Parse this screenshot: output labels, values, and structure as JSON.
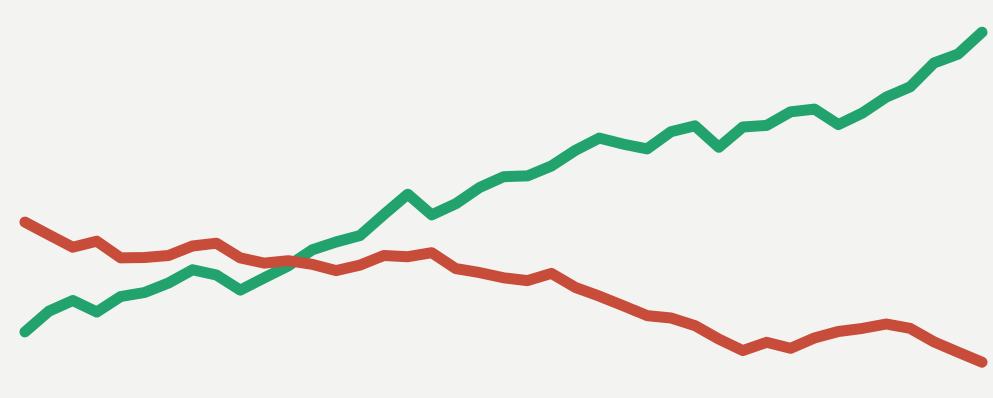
{
  "colors": {
    "background": "#f3f3f1",
    "green": "#22a36e",
    "red": "#c84c3a"
  },
  "chart_data": {
    "type": "line",
    "title": "",
    "xlabel": "",
    "ylabel": "",
    "grid": false,
    "legend": "none",
    "xlim": [
      0,
      40
    ],
    "ylim": [
      0,
      100
    ],
    "series": [
      {
        "color": "#22a36e",
        "values": [
          16.6,
          21.8,
          24.5,
          21.6,
          25.5,
          26.5,
          28.9,
          32.2,
          30.9,
          27.1,
          30.2,
          33.2,
          37.2,
          39.2,
          40.8,
          46.1,
          51.2,
          46.0,
          48.8,
          52.9,
          55.6,
          55.8,
          58.3,
          62.2,
          65.3,
          63.8,
          62.6,
          66.9,
          68.4,
          63.0,
          68.1,
          68.5,
          71.9,
          72.6,
          68.7,
          71.6,
          75.6,
          78.2,
          84.2,
          86.4,
          91.9
        ]
      },
      {
        "color": "#c84c3a",
        "values": [
          44.2,
          41.0,
          37.9,
          39.4,
          35.2,
          35.3,
          35.8,
          38.2,
          38.9,
          35.2,
          33.9,
          34.5,
          33.6,
          32.0,
          33.4,
          35.8,
          35.5,
          36.5,
          32.5,
          31.5,
          30.2,
          29.5,
          31.3,
          27.8,
          25.6,
          23.2,
          20.7,
          20.1,
          18.2,
          14.8,
          11.9,
          14.0,
          12.5,
          15.1,
          16.7,
          17.5,
          18.6,
          17.5,
          14.1,
          11.5,
          9.0
        ]
      }
    ]
  }
}
